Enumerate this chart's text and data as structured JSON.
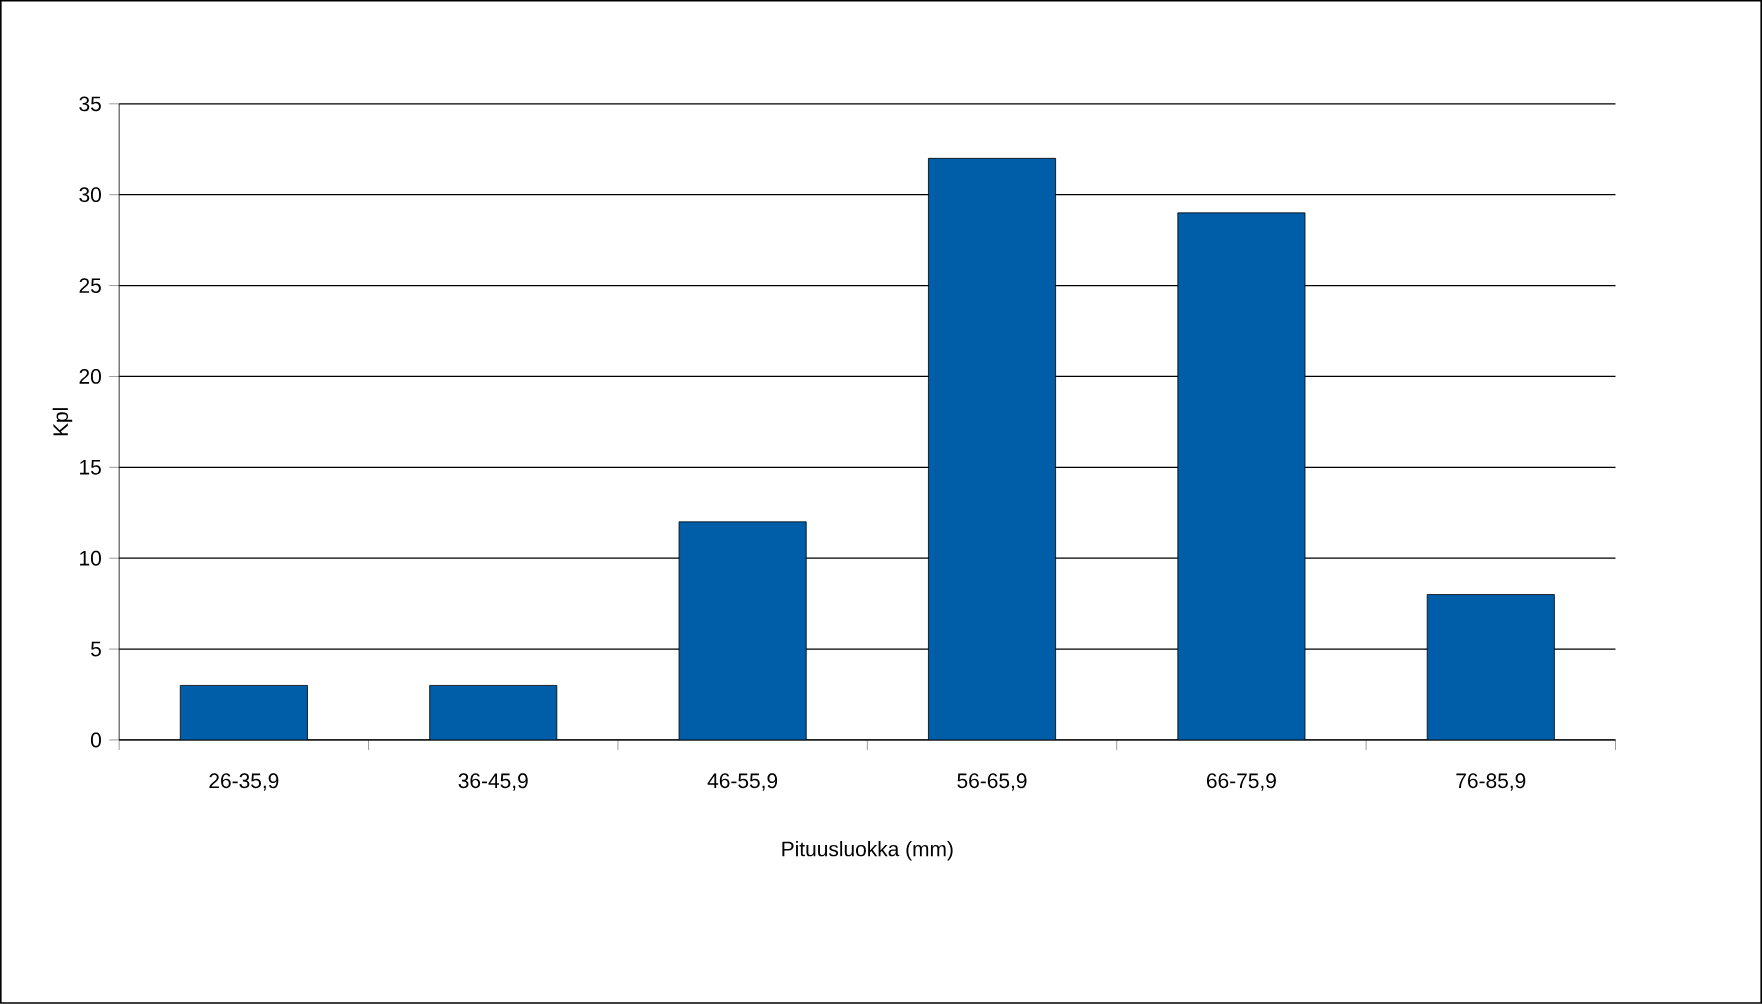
{
  "chart_data": {
    "type": "bar",
    "xlabel": "Pituusluokka (mm)",
    "ylabel": "Kpl",
    "categories": [
      "26-35,9",
      "36-45,9",
      "46-55,9",
      "56-65,9",
      "66-75,9",
      "76-85,9"
    ],
    "values": [
      3,
      3,
      12,
      32,
      29,
      8
    ],
    "color": "#005ea8",
    "ylim": [
      0,
      35
    ],
    "yticks": [
      0,
      5,
      10,
      15,
      20,
      25,
      30,
      35
    ],
    "grid": "y"
  }
}
